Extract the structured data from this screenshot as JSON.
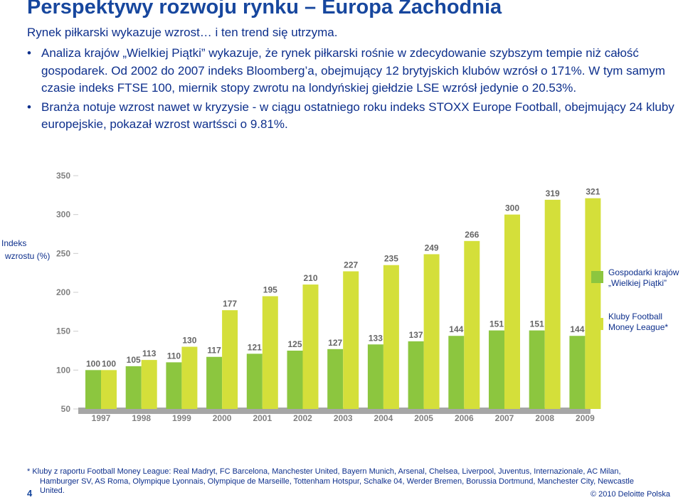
{
  "title": "Perspektywy rozwoju rynku – Europa Zachodnia",
  "subtitle": "Rynek piłkarski wykazuje wzrost… i ten trend się utrzyma.",
  "bullets": [
    "Analiza krajów „Wielkiej Piątki” wykazuje, że rynek piłkarski rośnie w zdecydowanie szybszym tempie niż całość gospodarek. Od 2002 do 2007 indeks Bloomberg’a, obejmujący 12 brytyjskich klubów wzrósł o 171%. W tym samym czasie indeks FTSE 100, miernik stopy zwrotu na londyńskiej giełdzie LSE wzrósł jedynie o 20.53%.",
    "Branża notuje wzrost nawet w kryzysie - w ciągu ostatniego roku indeks STOXX Europe Football, obejmujący 24 kluby europejskie, pokazał wzrost wartśsci o 9.81%."
  ],
  "bullet_symbol": "•",
  "chart_data": {
    "type": "bar",
    "ylabel_line1": "Indeks",
    "ylabel_line2": "wzrostu (%)",
    "categories": [
      "1997",
      "1998",
      "1999",
      "2000",
      "2001",
      "2002",
      "2003",
      "2004",
      "2005",
      "2006",
      "2007",
      "2008",
      "2009"
    ],
    "yticks": [
      "50",
      "100",
      "150",
      "200",
      "250",
      "300",
      "350"
    ],
    "ylim": [
      50,
      350
    ],
    "grid": false,
    "legend_position": "right",
    "series": [
      {
        "name_line1": "Gospodarki krajów",
        "name_line2": "„Wielkiej Piątki”",
        "color": "#8cc63f",
        "values": [
          100,
          105,
          110,
          117,
          121,
          125,
          127,
          133,
          137,
          144,
          151,
          151,
          144
        ]
      },
      {
        "name_line1": "Kluby Football",
        "name_line2": "Money League*",
        "color": "#d4df3a",
        "values": [
          100,
          113,
          130,
          177,
          195,
          210,
          227,
          235,
          249,
          266,
          300,
          319,
          321
        ]
      }
    ],
    "value_label_color": "#666666",
    "axis_band_color": "#a6a6a6",
    "tick_label_color": "#808080"
  },
  "footnote": {
    "line1": "* Kluby z raportu Football Money League: Real Madryt, FC Barcelona, Manchester United, Bayern Munich, Arsenal, Chelsea, Liverpool, Juventus, Internazionale, AC Milan,",
    "line2": "Hamburger SV, AS Roma, Olympique Lyonnais, Olympique de Marseille, Tottenham Hotspur, Schalke 04, Werder Bremen, Borussia Dortmund, Manchester City, Newcastle",
    "line3": "United."
  },
  "page_number": "4",
  "copyright": "© 2010 Deloitte Polska"
}
